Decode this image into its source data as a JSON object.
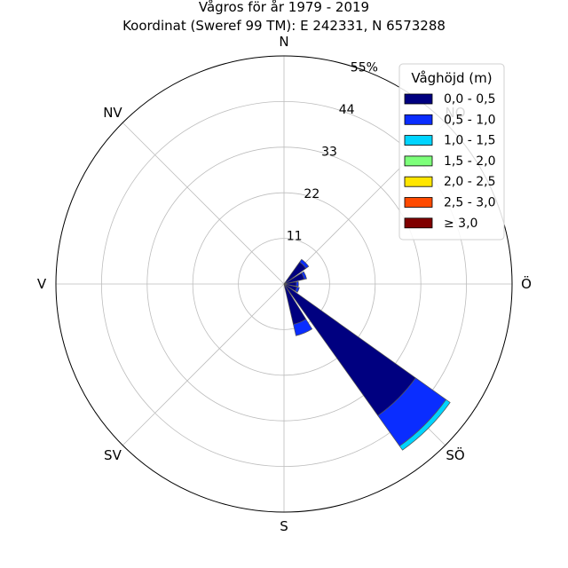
{
  "title": "Vågros för år 1979 - 2019",
  "subtitle": "Koordinat (Sweref 99 TM): E 242331, N 6573288",
  "chart_data": {
    "type": "windrose",
    "title": "Vågros för år 1979 - 2019",
    "subtitle": "Koordinat (Sweref 99 TM): E 242331, N 6573288",
    "directions": [
      "N",
      "NO",
      "Ö",
      "SÖ",
      "S",
      "SV",
      "V",
      "NV"
    ],
    "radial_ticks": [
      "11",
      "22",
      "33",
      "44",
      "55%"
    ],
    "radial_tick_values": [
      11,
      22,
      33,
      44,
      55
    ],
    "rmax": 55,
    "legend_title": "Våghöjd (m)",
    "legend_placement": "top-right",
    "bins": [
      {
        "label": "0,0 - 0,5",
        "color": "#000080"
      },
      {
        "label": "0,5 - 1,0",
        "color": "#0a2dff"
      },
      {
        "label": "1,0 - 1,5",
        "color": "#00d4ff"
      },
      {
        "label": "1,5 - 2,0",
        "color": "#7dff7a"
      },
      {
        "label": "2,0 - 2,5",
        "color": "#ffe600"
      },
      {
        "label": "2,5 - 3,0",
        "color": "#ff4a00"
      },
      {
        "label": "≥ 3,0",
        "color": "#800000"
      }
    ],
    "sectors": [
      {
        "bearing": 45,
        "values": [
          6.5,
          0.8,
          0,
          0,
          0,
          0,
          0
        ]
      },
      {
        "bearing": 67.5,
        "values": [
          5.0,
          0.6,
          0,
          0,
          0,
          0,
          0
        ]
      },
      {
        "bearing": 90,
        "values": [
          3.0,
          0.5,
          0,
          0,
          0,
          0,
          0
        ]
      },
      {
        "bearing": 112.5,
        "values": [
          3.2,
          0.6,
          0,
          0,
          0,
          0,
          0
        ]
      },
      {
        "bearing": 135,
        "values": [
          39.0,
          9.0,
          1.2,
          0,
          0,
          0,
          0
        ]
      },
      {
        "bearing": 157.5,
        "values": [
          10.0,
          2.8,
          0,
          0,
          0,
          0,
          0
        ]
      }
    ],
    "grid": true
  }
}
